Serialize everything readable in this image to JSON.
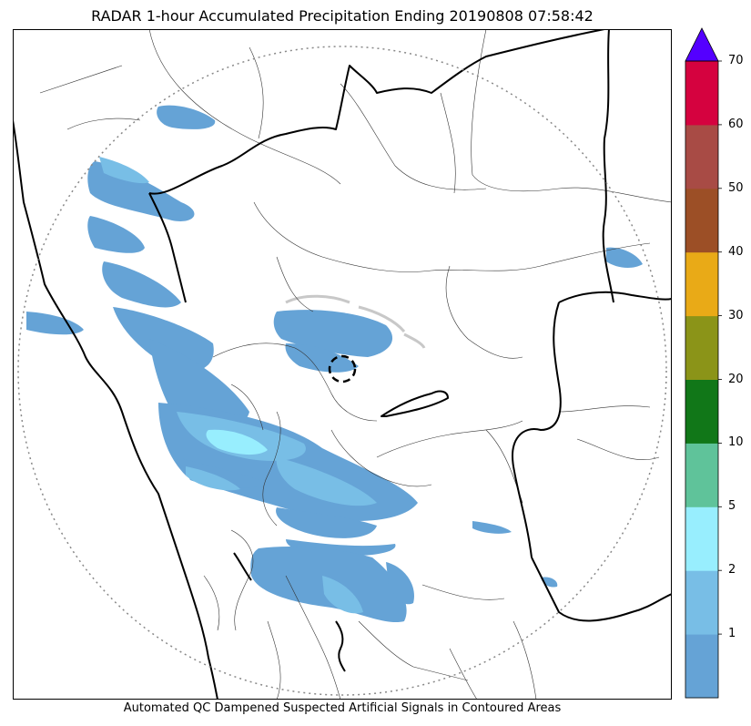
{
  "title": "RADAR 1-hour Accumulated Precipitation Ending 20190808 07:58:42",
  "footer": "Automated QC Dampened Suspected Artificial Signals in Contoured Areas",
  "colorbar": {
    "ticks": [
      "1",
      "2",
      "5",
      "10",
      "20",
      "30",
      "40",
      "50",
      "60",
      "70"
    ],
    "colors": [
      "#65a3d6",
      "#78bee6",
      "#98eefe",
      "#5fc39a",
      "#117718",
      "#8b9418",
      "#e9aa17",
      "#9c4f26",
      "#a84b45",
      "#d5023f"
    ],
    "extend_color": "#5400ff"
  },
  "map": {
    "frame_color": "#000000",
    "state_border_color": "#000000",
    "district_border_color": "#333333",
    "range_ring_color": "#888888",
    "rain_colors": {
      "light": "#65a3d6",
      "moderate": "#78bee6",
      "heavy": "#98eefe"
    }
  }
}
